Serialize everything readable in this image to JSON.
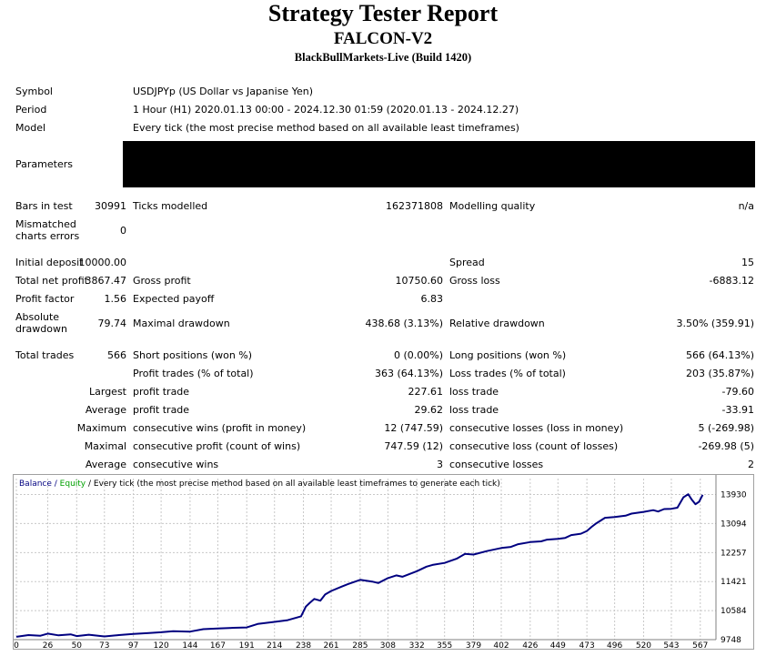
{
  "header": {
    "title": "Strategy Tester Report",
    "expert": "FALCON-V2",
    "server": "BlackBullMarkets-Live (Build 1420)"
  },
  "settings": {
    "symbol_label": "Symbol",
    "symbol_value": "USDJPYp (US Dollar vs Japanise Yen)",
    "period_label": "Period",
    "period_value": "1 Hour (H1) 2020.01.13 00:00 - 2024.12.30 01:59 (2020.01.13 - 2024.12.27)",
    "model_label": "Model",
    "model_value": "Every tick (the most precise method based on all available least timeframes)",
    "parameters_label": "Parameters"
  },
  "stats": {
    "bars_label": "Bars in test",
    "bars_value": "30991",
    "ticks_label": "Ticks modelled",
    "ticks_value": "162371808",
    "quality_label": "Modelling quality",
    "quality_value": "n/a",
    "mismatch_label_1": "Mismatched",
    "mismatch_label_2": "charts errors",
    "mismatch_value": "0",
    "deposit_label": "Initial deposit",
    "deposit_value": "10000.00",
    "spread_label": "Spread",
    "spread_value": "15",
    "net_profit_label": "Total net profit",
    "net_profit_value": "3867.47",
    "gross_profit_label": "Gross profit",
    "gross_profit_value": "10750.60",
    "gross_loss_label": "Gross loss",
    "gross_loss_value": "-6883.12",
    "profit_factor_label": "Profit factor",
    "profit_factor_value": "1.56",
    "expected_payoff_label": "Expected payoff",
    "expected_payoff_value": "6.83",
    "abs_dd_label_1": "Absolute",
    "abs_dd_label_2": "drawdown",
    "abs_dd_value": "79.74",
    "max_dd_label": "Maximal drawdown",
    "max_dd_value": "438.68 (3.13%)",
    "rel_dd_label": "Relative drawdown",
    "rel_dd_value": "3.50% (359.91)",
    "total_trades_label": "Total trades",
    "total_trades_value": "566",
    "short_label": "Short positions (won %)",
    "short_value": "0 (0.00%)",
    "long_label": "Long positions (won %)",
    "long_value": "566 (64.13%)",
    "profit_trades_label": "Profit trades (% of total)",
    "profit_trades_value": "363 (64.13%)",
    "loss_trades_label": "Loss trades (% of total)",
    "loss_trades_value": "203 (35.87%)",
    "largest_label": "Largest",
    "largest_profit_label": "profit trade",
    "largest_profit_value": "227.61",
    "largest_loss_label": "loss trade",
    "largest_loss_value": "-79.60",
    "average_label": "Average",
    "average_profit_label": "profit trade",
    "average_profit_value": "29.62",
    "average_loss_label": "loss trade",
    "average_loss_value": "-33.91",
    "maximum_label": "Maximum",
    "max_cons_wins_label": "consecutive wins (profit in money)",
    "max_cons_wins_value": "12 (747.59)",
    "max_cons_losses_label": "consecutive losses (loss in money)",
    "max_cons_losses_value": "5 (-269.98)",
    "maximal_label": "Maximal",
    "maximal_profit_label": "consecutive profit (count of wins)",
    "maximal_profit_value": "747.59 (12)",
    "maximal_loss_label": "consecutive loss (count of losses)",
    "maximal_loss_value": "-269.98 (5)",
    "average2_label": "Average",
    "avg_cons_wins_label": "consecutive wins",
    "avg_cons_wins_value": "3",
    "avg_cons_losses_label": "consecutive losses",
    "avg_cons_losses_value": "2"
  },
  "chart": {
    "legend_balance": "Balance",
    "legend_sep": " / ",
    "legend_equity": "Equity",
    "legend_rest": " / Every tick (the most precise method based on all available least timeframes to generate each tick)",
    "colors": {
      "balance": "#000080",
      "equity": "#00a000",
      "grid": "#c8c8c8"
    }
  },
  "chart_data": {
    "type": "line",
    "x_ticks": [
      0,
      26,
      50,
      73,
      97,
      120,
      144,
      167,
      191,
      214,
      238,
      261,
      285,
      308,
      332,
      355,
      379,
      402,
      426,
      449,
      473,
      496,
      520,
      543,
      567
    ],
    "y_ticks": [
      9748,
      10584,
      11421,
      12257,
      13094,
      13930
    ],
    "xlim": [
      0,
      580
    ],
    "ylim": [
      9748,
      14180
    ],
    "series": [
      {
        "name": "Balance",
        "x": [
          0,
          10,
          20,
          26,
          35,
          45,
          50,
          60,
          73,
          85,
          97,
          110,
          120,
          130,
          144,
          155,
          167,
          180,
          191,
          200,
          214,
          225,
          232,
          236,
          240,
          243,
          247,
          252,
          256,
          261,
          270,
          275,
          285,
          295,
          300,
          308,
          315,
          320,
          332,
          340,
          345,
          355,
          365,
          372,
          379,
          390,
          402,
          410,
          416,
          426,
          435,
          440,
          449,
          455,
          460,
          468,
          473,
          477,
          480,
          488,
          496,
          505,
          510,
          520,
          528,
          532,
          537,
          543,
          548,
          553,
          557,
          560,
          563,
          566,
          569
        ],
        "y": [
          9830,
          9880,
          9860,
          9920,
          9870,
          9900,
          9850,
          9890,
          9840,
          9880,
          9910,
          9940,
          9960,
          9990,
          9980,
          10050,
          10070,
          10090,
          10100,
          10200,
          10260,
          10310,
          10380,
          10420,
          10700,
          10800,
          10920,
          10870,
          11050,
          11150,
          11280,
          11350,
          11470,
          11420,
          11380,
          11520,
          11600,
          11560,
          11720,
          11850,
          11900,
          11960,
          12080,
          12220,
          12200,
          12300,
          12390,
          12420,
          12500,
          12560,
          12580,
          12630,
          12650,
          12680,
          12760,
          12800,
          12880,
          13000,
          13080,
          13260,
          13280,
          13320,
          13380,
          13430,
          13480,
          13440,
          13510,
          13520,
          13550,
          13850,
          13940,
          13780,
          13650,
          13720,
          13920
        ]
      }
    ]
  }
}
